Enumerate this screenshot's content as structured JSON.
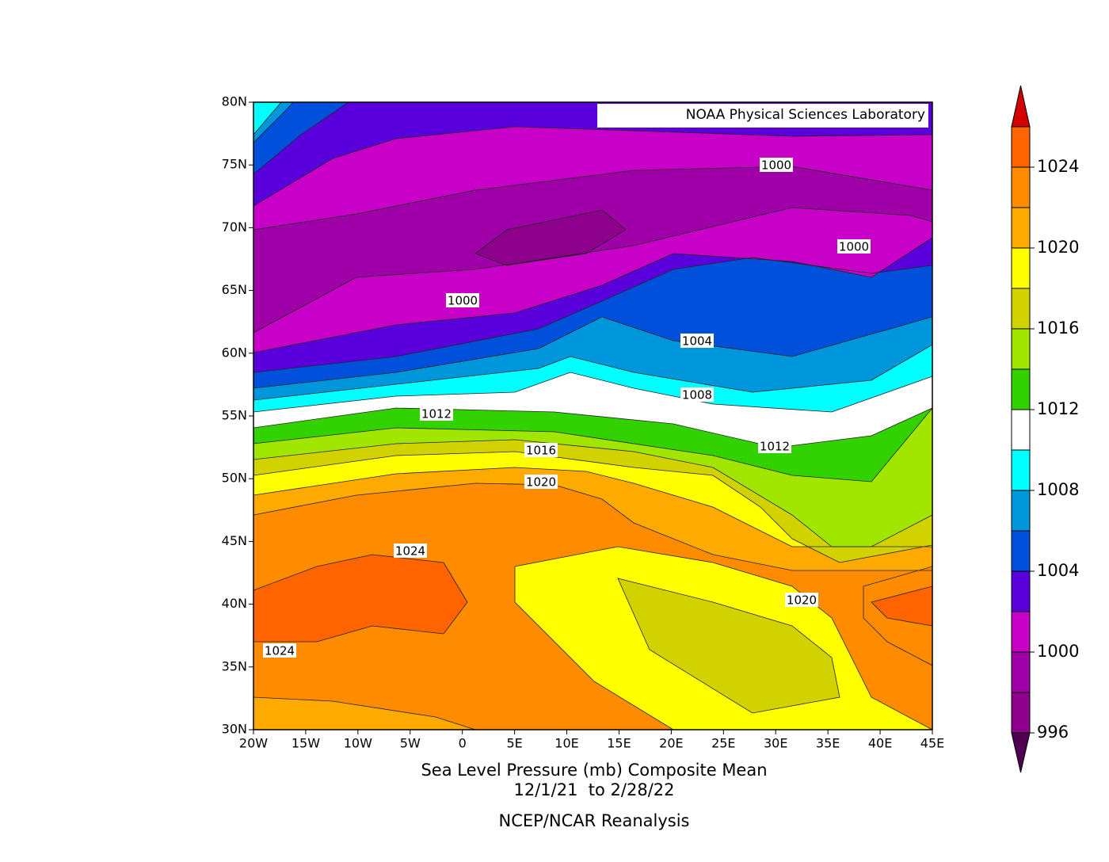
{
  "credit": "NOAA Physical Sciences Laboratory",
  "title": "Sea Level Pressure (mb) Composite Mean",
  "period": "12/1/21  to 2/28/22",
  "source": "NCEP/NCAR Reanalysis",
  "lat_labels": [
    "80N",
    "75N",
    "70N",
    "65N",
    "60N",
    "55N",
    "50N",
    "45N",
    "40N",
    "35N",
    "30N"
  ],
  "lon_labels": [
    "20W",
    "15W",
    "10W",
    "5W",
    "0",
    "5E",
    "10E",
    "15E",
    "20E",
    "25E",
    "30E",
    "35E",
    "40E",
    "45E"
  ],
  "contour_labels": [
    "1000",
    "1000",
    "1000",
    "1004",
    "1008",
    "1012",
    "1012",
    "1016",
    "1020",
    "1024",
    "1020",
    "1024"
  ],
  "colorbar": {
    "labels": [
      "1024",
      "1020",
      "1016",
      "1012",
      "1008",
      "1004",
      "1000",
      "996"
    ],
    "colors": [
      "#ff6400",
      "#ff8c00",
      "#ffaa00",
      "#ffff00",
      "#d2d200",
      "#a0e600",
      "#32d200",
      "#ffffff",
      "#00ffff",
      "#0096dc",
      "#0050dc",
      "#5a00dc",
      "#c800c8",
      "#a000a8",
      "#8c008c"
    ],
    "over_color": "#d20000",
    "under_color": "#500050"
  }
}
